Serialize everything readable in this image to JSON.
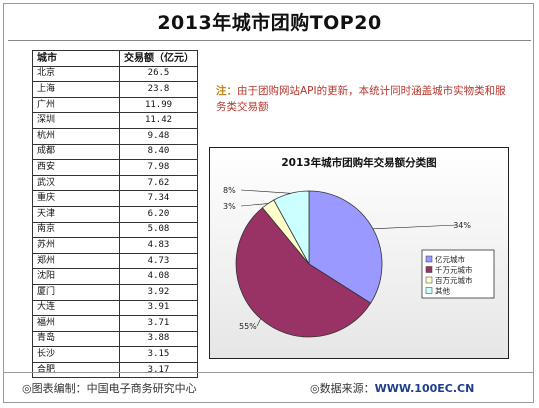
{
  "title": "2013年城市团购TOP20",
  "table": {
    "header_city": "城市",
    "header_value": "交易额（亿元）",
    "rows": [
      {
        "city": "北京",
        "value": "26.5"
      },
      {
        "city": "上海",
        "value": "23.8"
      },
      {
        "city": "广州",
        "value": "11.99"
      },
      {
        "city": "深圳",
        "value": "11.42"
      },
      {
        "city": "杭州",
        "value": "9.48"
      },
      {
        "city": "成都",
        "value": "8.40"
      },
      {
        "city": "西安",
        "value": "7.98"
      },
      {
        "city": "武汉",
        "value": "7.62"
      },
      {
        "city": "重庆",
        "value": "7.34"
      },
      {
        "city": "天津",
        "value": "6.20"
      },
      {
        "city": "南京",
        "value": "5.08"
      },
      {
        "city": "苏州",
        "value": "4.83"
      },
      {
        "city": "郑州",
        "value": "4.73"
      },
      {
        "city": "沈阳",
        "value": "4.08"
      },
      {
        "city": "厦门",
        "value": "3.92"
      },
      {
        "city": "大连",
        "value": "3.91"
      },
      {
        "city": "福州",
        "value": "3.71"
      },
      {
        "city": "青岛",
        "value": "3.88"
      },
      {
        "city": "长沙",
        "value": "3.15"
      },
      {
        "city": "合肥",
        "value": "3.17"
      }
    ]
  },
  "note": {
    "label": "注：",
    "text": "由于团购网站API的更新，本统计同时涵盖城市实物类和服务类交易额"
  },
  "chart_data": {
    "type": "pie",
    "title": "2013年城市团购年交易额分类图",
    "slices": [
      {
        "name": "亿元城市",
        "value": 34,
        "label": "34%",
        "color": "#9999ff"
      },
      {
        "name": "千万元城市",
        "value": 55,
        "label": "55%",
        "color": "#993366"
      },
      {
        "name": "百万元城市",
        "value": 3,
        "label": "3%",
        "color": "#ffffcc"
      },
      {
        "name": "其他",
        "value": 8,
        "label": "8%",
        "color": "#ccffff"
      }
    ],
    "legend_position": "right"
  },
  "footer": {
    "left": "◎图表编制：中国电子商务研究中心",
    "right_label": "◎数据来源：",
    "right_site": "WWW.100EC.CN"
  }
}
